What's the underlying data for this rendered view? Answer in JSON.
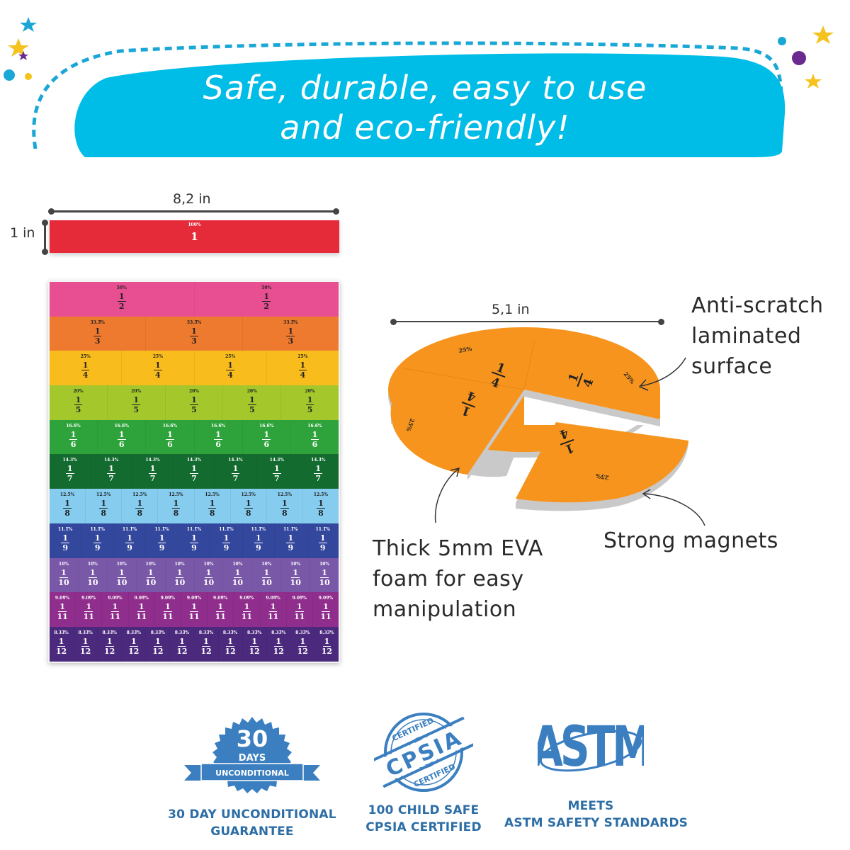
{
  "banner": {
    "line1": "Safe, durable, easy to use",
    "line2": "and eco-friendly!",
    "color": "#00bde8",
    "dash_color": "#1aa7d6"
  },
  "decorations": {
    "left": [
      "blue-star",
      "yellow-star",
      "purple-star",
      "blue-dot",
      "yellow-dot"
    ],
    "right": [
      "yellow-star",
      "blue-dot",
      "purple-dot",
      "yellow-star"
    ]
  },
  "whole_bar": {
    "width_label": "8,2 in",
    "height_label": "1 in",
    "percent": "100%",
    "value": "1",
    "color": "#e52b3a"
  },
  "fraction_chart": {
    "rows": [
      {
        "denominator": "2",
        "percent": "50%",
        "color": "#e84f93",
        "text": "#222222",
        "count": 2
      },
      {
        "denominator": "3",
        "percent": "33.3̅%",
        "color": "#ee7a30",
        "text": "#222222",
        "count": 3
      },
      {
        "denominator": "4",
        "percent": "25%",
        "color": "#f8bd1c",
        "text": "#222222",
        "count": 4
      },
      {
        "denominator": "5",
        "percent": "20%",
        "color": "#a4c72c",
        "text": "#222222",
        "count": 5
      },
      {
        "denominator": "6",
        "percent": "16.6̅%",
        "color": "#2ea33b",
        "text": "#ffffff",
        "count": 6
      },
      {
        "denominator": "7",
        "percent": "14.3%",
        "color": "#146b2f",
        "text": "#ffffff",
        "count": 7
      },
      {
        "denominator": "8",
        "percent": "12.5%",
        "color": "#86ccee",
        "text": "#222222",
        "count": 8
      },
      {
        "denominator": "9",
        "percent": "11.1̅%",
        "color": "#33479c",
        "text": "#ffffff",
        "count": 9
      },
      {
        "denominator": "10",
        "percent": "10%",
        "color": "#7a58a8",
        "text": "#ffffff",
        "count": 10
      },
      {
        "denominator": "11",
        "percent": "9.09̅%",
        "color": "#8f2e8c",
        "text": "#ffffff",
        "count": 11
      },
      {
        "denominator": "12",
        "percent": "8.33̅%",
        "color": "#4b2a7e",
        "text": "#ffffff",
        "count": 12
      }
    ],
    "numerator": "1"
  },
  "pie": {
    "width_label": "5,1 in",
    "slice_fraction_num": "1",
    "slice_fraction_den": "4",
    "slice_percent": "25%",
    "color": "#f7941d",
    "edge_color": "#c9c9c9"
  },
  "callouts": {
    "surface": [
      "Anti-scratch",
      "laminated",
      "surface"
    ],
    "foam": [
      "Thick 5mm EVA",
      "foam for easy",
      "manipulation"
    ],
    "magnets": [
      "Strong magnets"
    ]
  },
  "badges": [
    {
      "icon": "guarantee-seal",
      "seal_number": "30",
      "seal_word": "DAYS",
      "ribbon_text": "UNCONDITIONAL",
      "caption": [
        "30 DAY UNCONDITIONAL",
        "GUARANTEE"
      ]
    },
    {
      "icon": "cpsia-stamp",
      "stamp_top": "CERTIFIED",
      "stamp_mid": "CPSIA",
      "stamp_bottom": "CERTIFIED",
      "caption": [
        "100 CHILD SAFE",
        "CPSIA CERTIFIED"
      ]
    },
    {
      "icon": "astm-logo",
      "logo_text": "ASTM",
      "caption": [
        "MEETS",
        "ASTM SAFETY STANDARDS"
      ]
    }
  ],
  "badge_color": "#3b7fc0"
}
